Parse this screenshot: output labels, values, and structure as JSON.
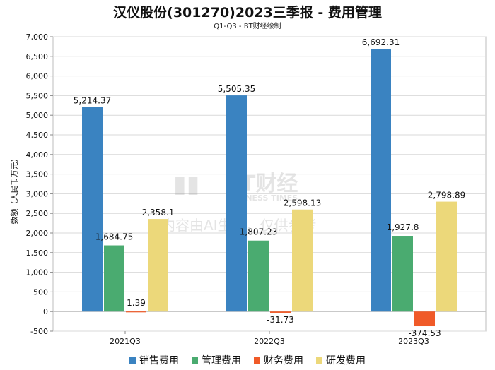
{
  "title": "汉仪股份(301270)2023三季报 - 费用管理",
  "subtitle": "Q1-Q3 - BT财经绘制",
  "watermark": {
    "brand": "BT财经",
    "brand_sub": "BUSINESS TIMES",
    "notice": "内容由AI生成，仅供参考"
  },
  "colors": {
    "销售费用": "#3a83c1",
    "管理费用": "#4aab70",
    "财务费用": "#f05a28",
    "研发费用": "#ecd87a",
    "grid": "#d9d9d9"
  },
  "chart_data": {
    "type": "bar",
    "title": "汉仪股份(301270)2023三季报 - 费用管理",
    "subtitle": "Q1-Q3 - BT财经绘制",
    "xlabel": "",
    "ylabel": "数额（人民币万元）",
    "ylim": [
      -500,
      7000
    ],
    "yticks": [
      -500,
      0,
      500,
      1000,
      1500,
      2000,
      2500,
      3000,
      3500,
      4000,
      4500,
      5000,
      5500,
      6000,
      6500,
      7000
    ],
    "ytick_labels": [
      "-500",
      "0",
      "500",
      "1,000",
      "1,500",
      "2,000",
      "2,500",
      "3,000",
      "3,500",
      "4,000",
      "4,500",
      "5,000",
      "5,500",
      "6,000",
      "6,500",
      "7,000"
    ],
    "grid": true,
    "legend_position": "bottom",
    "categories": [
      "2021Q3",
      "2022Q3",
      "2023Q3"
    ],
    "series": [
      {
        "name": "销售费用",
        "values": [
          5214.37,
          5505.35,
          6692.31
        ],
        "labels": [
          "5,214.37",
          "5,505.35",
          "6,692.31"
        ]
      },
      {
        "name": "管理费用",
        "values": [
          1684.75,
          1807.23,
          1927.8
        ],
        "labels": [
          "1,684.75",
          "1,807.23",
          "1,927.8"
        ]
      },
      {
        "name": "财务费用",
        "values": [
          1.39,
          -31.73,
          -374.53
        ],
        "labels": [
          "1.39",
          "-31.73",
          "-374.53"
        ]
      },
      {
        "name": "研发费用",
        "values": [
          2358.1,
          2598.13,
          2798.89
        ],
        "labels": [
          "2,358.1",
          "2,598.13",
          "2,798.89"
        ]
      }
    ]
  }
}
